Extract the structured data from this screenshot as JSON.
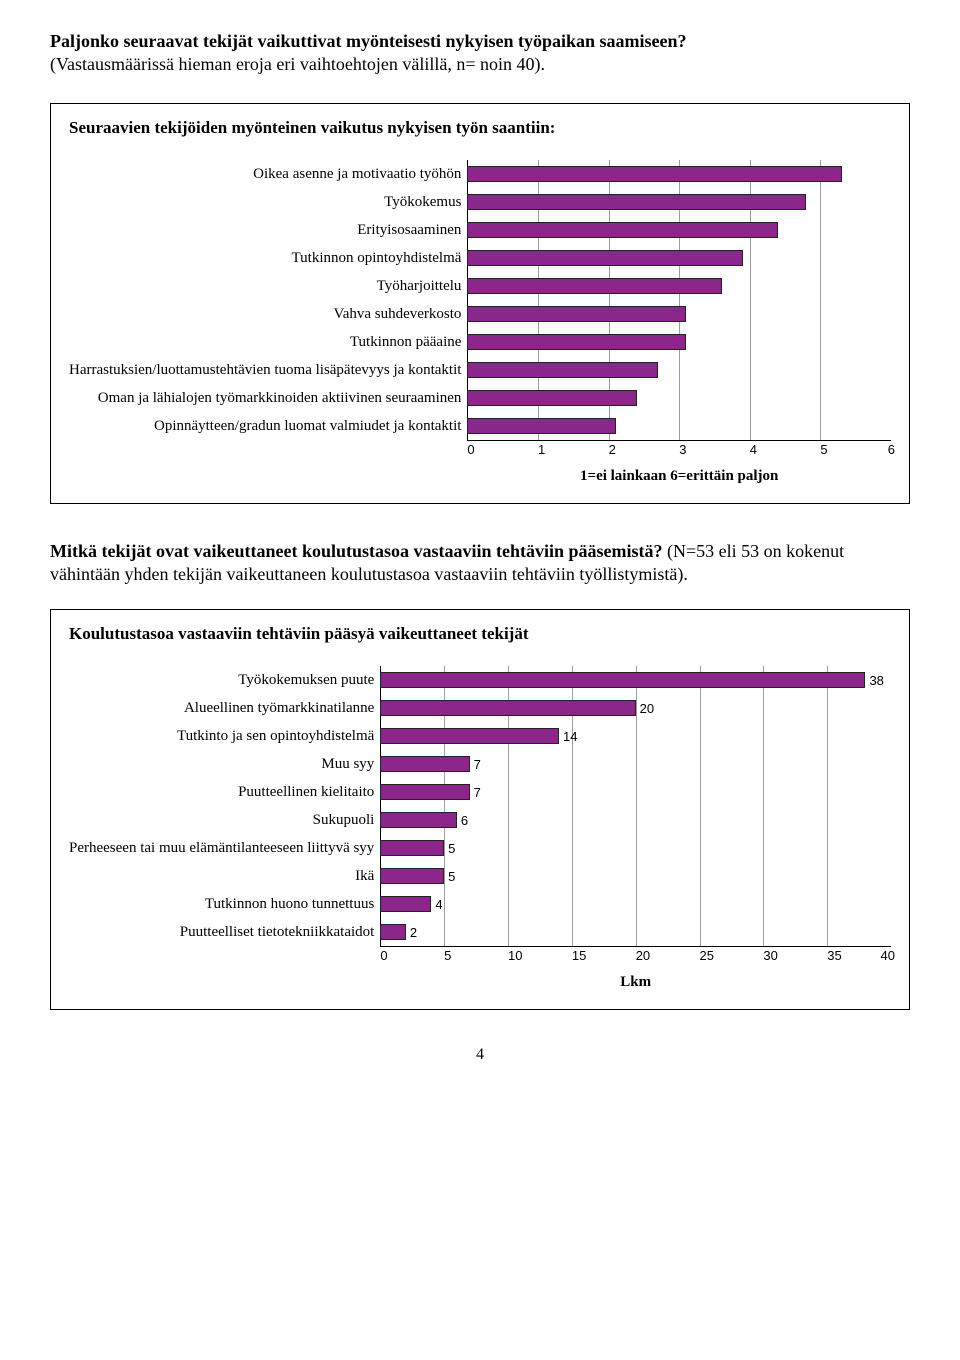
{
  "question1_line1": "Paljonko seuraavat tekijät vaikuttivat myönteisesti nykyisen työpaikan saamiseen?",
  "question1_line2": "(Vastausmäärissä hieman eroja eri vaihtoehtojen välillä, n= noin 40).",
  "chart1": {
    "title": "Seuraavien tekijöiden myönteinen vaikutus nykyisen työn saantiin:",
    "bar_color": "#8b268b",
    "bar_border": "#222222",
    "grid_color": "#9e9e9e",
    "axis_color": "#000000",
    "xmin": 0,
    "xmax": 6,
    "xtick_step": 1,
    "xticks": [
      "0",
      "1",
      "2",
      "3",
      "4",
      "5",
      "6"
    ],
    "axis_caption": "1=ei lainkaan  6=erittäin paljon",
    "show_value_labels": false,
    "items": [
      {
        "label": "Oikea asenne ja motivaatio työhön",
        "value": 5.3
      },
      {
        "label": "Työkokemus",
        "value": 4.8
      },
      {
        "label": "Erityisosaaminen",
        "value": 4.4
      },
      {
        "label": "Tutkinnon opintoyhdistelmä",
        "value": 3.9
      },
      {
        "label": "Työharjoittelu",
        "value": 3.6
      },
      {
        "label": "Vahva suhdeverkosto",
        "value": 3.1
      },
      {
        "label": "Tutkinnon pääaine",
        "value": 3.1
      },
      {
        "label": "Harrastuksien/luottamustehtävien tuoma lisäpätevyys ja kontaktit",
        "value": 2.7
      },
      {
        "label": "Oman ja lähialojen työmarkkinoiden aktiivinen seuraaminen",
        "value": 2.4
      },
      {
        "label": "Opinnäytteen/gradun luomat valmiudet ja kontaktit",
        "value": 2.1
      }
    ]
  },
  "midtext_bold": "Mitkä tekijät ovat vaikeuttaneet koulutustasoa vastaaviin tehtäviin pääsemistä?",
  "midtext_rest": " (N=53 eli 53 on kokenut vähintään yhden tekijän vaikeuttaneen koulutustasoa vastaaviin tehtäviin työllistymistä).",
  "chart2": {
    "title": "Koulutustasoa vastaaviin tehtäviin pääsyä vaikeuttaneet tekijät",
    "bar_color": "#8b268b",
    "bar_border": "#222222",
    "grid_color": "#9e9e9e",
    "axis_color": "#000000",
    "xmin": 0,
    "xmax": 40,
    "xtick_step": 5,
    "xticks": [
      "0",
      "5",
      "10",
      "15",
      "20",
      "25",
      "30",
      "35",
      "40"
    ],
    "axis_caption": "Lkm",
    "show_value_labels": true,
    "items": [
      {
        "label": "Työkokemuksen puute",
        "value": 38
      },
      {
        "label": "Alueellinen työmarkkinatilanne",
        "value": 20
      },
      {
        "label": "Tutkinto ja sen opintoyhdistelmä",
        "value": 14
      },
      {
        "label": "Muu syy",
        "value": 7
      },
      {
        "label": "Puutteellinen kielitaito",
        "value": 7
      },
      {
        "label": "Sukupuoli",
        "value": 6
      },
      {
        "label": "Perheeseen tai muu elämäntilanteeseen liittyvä syy",
        "value": 5
      },
      {
        "label": "Ikä",
        "value": 5
      },
      {
        "label": "Tutkinnon huono tunnettuus",
        "value": 4
      },
      {
        "label": "Puutteelliset tietotekniikkataidot",
        "value": 2
      }
    ]
  },
  "page_number": "4"
}
